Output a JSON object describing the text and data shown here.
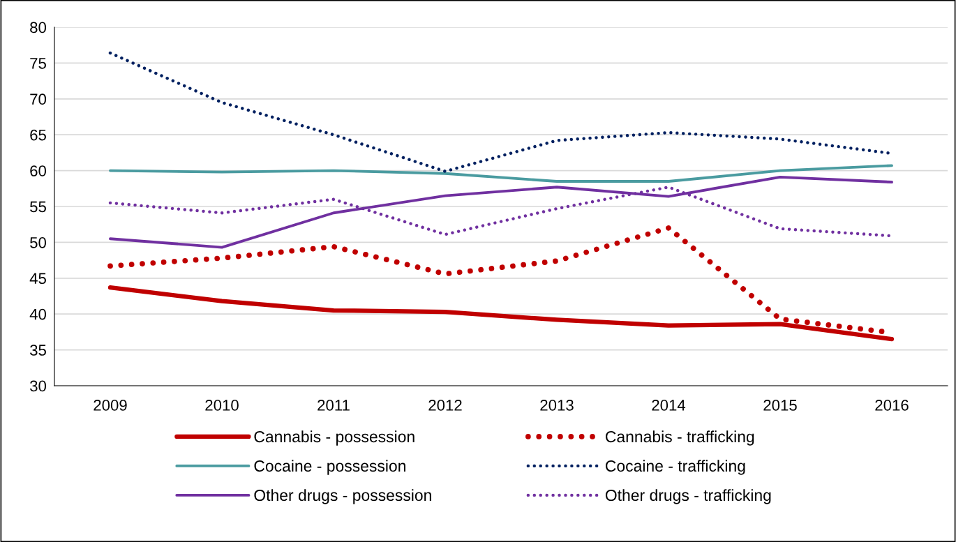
{
  "chart_data": {
    "type": "line",
    "categories": [
      "2009",
      "2010",
      "2011",
      "2012",
      "2013",
      "2014",
      "2015",
      "2016"
    ],
    "ylim": [
      30,
      80
    ],
    "yticks": [
      30,
      35,
      40,
      45,
      50,
      55,
      60,
      65,
      70,
      75,
      80
    ],
    "grid": "y",
    "legend": "bottom",
    "marker": "none",
    "series": [
      {
        "name": "Cannabis - possession",
        "color": "#c00000",
        "line_style": "solid",
        "values": [
          43.7,
          41.8,
          40.5,
          40.3,
          39.2,
          38.4,
          38.6,
          36.5
        ]
      },
      {
        "name": "Cannabis - trafficking",
        "color": "#c00000",
        "line_style": "dotted",
        "values": [
          46.7,
          47.8,
          49.4,
          45.6,
          47.4,
          52.0,
          39.3,
          37.4
        ]
      },
      {
        "name": "Cocaine - possession",
        "color": "#4a9ba0",
        "line_style": "solid",
        "values": [
          60.0,
          59.8,
          60.0,
          59.6,
          58.5,
          58.5,
          60.0,
          60.7
        ]
      },
      {
        "name": "Cocaine - trafficking",
        "color": "#002060",
        "line_style": "dotted",
        "values": [
          76.4,
          69.5,
          65.0,
          59.9,
          64.2,
          65.3,
          64.4,
          62.4
        ]
      },
      {
        "name": "Other drugs - possession",
        "color": "#7030a0",
        "line_style": "solid",
        "values": [
          50.5,
          49.3,
          54.1,
          56.5,
          57.7,
          56.4,
          59.1,
          58.4
        ]
      },
      {
        "name": "Other drugs - trafficking",
        "color": "#7030a0",
        "line_style": "dotted",
        "values": [
          55.5,
          54.1,
          56.0,
          51.1,
          54.7,
          57.7,
          51.9,
          50.9
        ]
      }
    ]
  }
}
